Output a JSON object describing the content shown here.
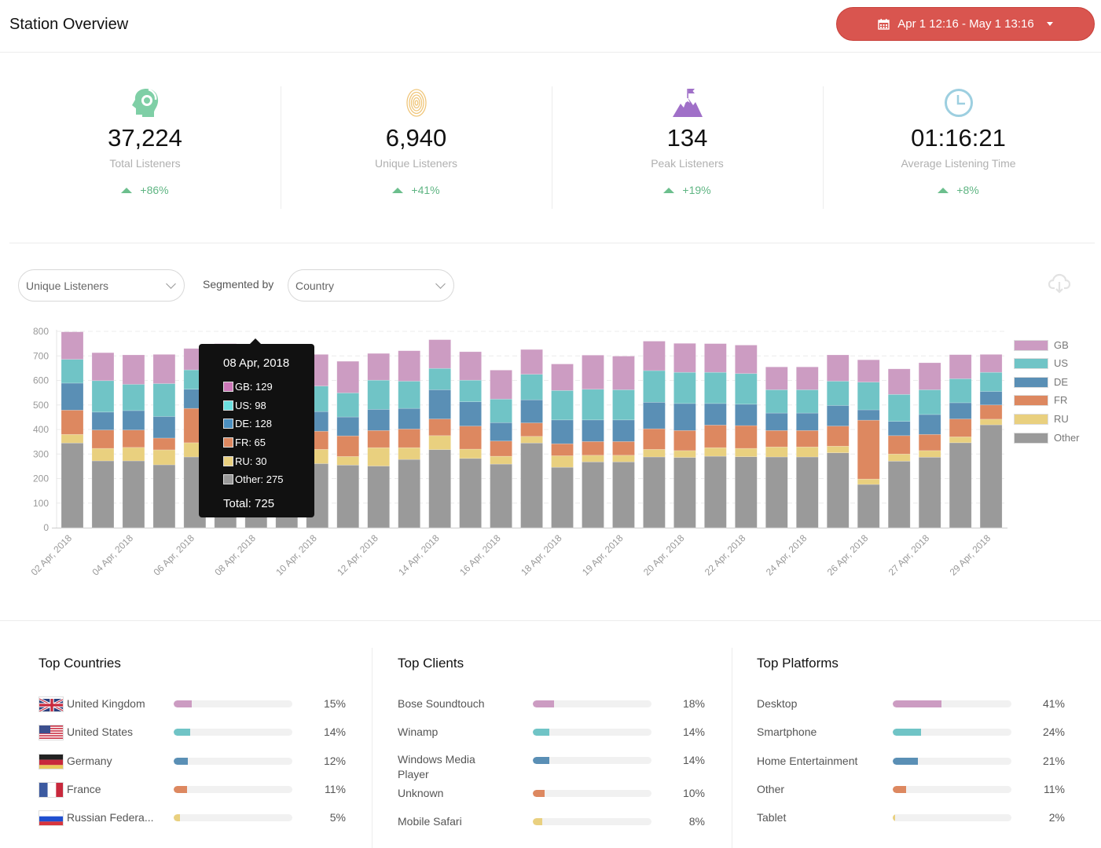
{
  "header": {
    "title": "Station Overview",
    "date_range": "Apr 1 12:16 - May 1 13:16",
    "date_icon": "calendar-icon"
  },
  "kpis": [
    {
      "icon": "listener-headphones-icon",
      "value": "37,224",
      "label": "Total Listeners",
      "change": "+86%",
      "color": "#7fcfa6"
    },
    {
      "icon": "fingerprint-icon",
      "value": "6,940",
      "label": "Unique Listeners",
      "change": "+41%",
      "color": "#f0c67a"
    },
    {
      "icon": "mountain-flag-icon",
      "value": "134",
      "label": "Peak Listeners",
      "change": "+19%",
      "color": "#a070c8"
    },
    {
      "icon": "clock-icon",
      "value": "01:16:21",
      "label": "Average Listening Time",
      "change": "+8%",
      "color": "#9dcfe0"
    }
  ],
  "controls": {
    "metric": "Unique Listeners",
    "segmented_by_label": "Segmented by",
    "segment": "Country",
    "download_icon": "cloud-download-icon"
  },
  "chart_data": {
    "type": "bar",
    "stacked": true,
    "ylim": [
      0,
      800
    ],
    "yticks": [
      0,
      100,
      200,
      300,
      400,
      500,
      600,
      700,
      800
    ],
    "x_tick_labels": [
      "02 Apr, 2018",
      "04 Apr, 2018",
      "06 Apr, 2018",
      "08 Apr, 2018",
      "10 Apr, 2018",
      "12 Apr, 2018",
      "14 Apr, 2018",
      "16 Apr, 2018",
      "18 Apr, 2018",
      "19 Apr, 2018",
      "20 Apr, 2018",
      "22 Apr, 2018",
      "24 Apr, 2018",
      "26 Apr, 2018",
      "27 Apr, 2018",
      "29 Apr, 2018"
    ],
    "legend_position": "right",
    "series": [
      {
        "name": "Other",
        "color": "#9a9a9a",
        "values": [
          345,
          272,
          272,
          256,
          288,
          300,
          275,
          280,
          261,
          255,
          251,
          278,
          318,
          282,
          259,
          345,
          246,
          268,
          268,
          288,
          286,
          291,
          289,
          288,
          288,
          305,
          176,
          271,
          287,
          346,
          419
        ]
      },
      {
        "name": "RU",
        "color": "#e9d07f",
        "values": [
          35,
          51,
          55,
          61,
          58,
          50,
          30,
          45,
          58,
          35,
          75,
          48,
          57,
          38,
          32,
          27,
          47,
          27,
          27,
          31,
          28,
          35,
          34,
          41,
          41,
          27,
          22,
          29,
          27,
          24,
          23
        ]
      },
      {
        "name": "FR",
        "color": "#dd8860",
        "values": [
          99,
          75,
          71,
          48,
          140,
          70,
          65,
          70,
          74,
          84,
          70,
          76,
          68,
          94,
          62,
          55,
          49,
          56,
          56,
          84,
          82,
          92,
          93,
          67,
          67,
          82,
          240,
          75,
          66,
          73,
          58
        ]
      },
      {
        "name": "DE",
        "color": "#5a8fb5",
        "values": [
          110,
          73,
          79,
          88,
          78,
          85,
          128,
          84,
          80,
          77,
          86,
          84,
          119,
          99,
          75,
          94,
          97,
          88,
          88,
          108,
          110,
          88,
          87,
          71,
          71,
          84,
          42,
          58,
          81,
          66,
          55
        ]
      },
      {
        "name": "US",
        "color": "#70c4c6",
        "values": [
          97,
          128,
          107,
          134,
          79,
          108,
          98,
          104,
          104,
          98,
          119,
          111,
          87,
          88,
          96,
          104,
          120,
          125,
          123,
          129,
          127,
          127,
          125,
          95,
          95,
          99,
          113,
          110,
          101,
          98,
          78
        ]
      },
      {
        "name": "GB",
        "color": "#cc9cc2",
        "values": [
          112,
          114,
          120,
          119,
          87,
          137,
          129,
          108,
          129,
          129,
          109,
          124,
          117,
          116,
          118,
          101,
          108,
          139,
          137,
          120,
          118,
          117,
          116,
          93,
          93,
          107,
          91,
          104,
          110,
          98,
          73
        ]
      }
    ],
    "legend": [
      "GB",
      "US",
      "DE",
      "FR",
      "RU",
      "Other"
    ],
    "highlight_index": 6,
    "highlight_colors": {
      "GB": "#cc77b8",
      "US": "#6bdfdf",
      "DE": "#4b8fc0",
      "FR": "#dd8860",
      "RU": "#e9d07f",
      "Other": "#9a9a9a"
    },
    "tooltip": {
      "date": "08 Apr, 2018",
      "rows": [
        {
          "name": "GB",
          "text": "GB: 129"
        },
        {
          "name": "US",
          "text": "US: 98"
        },
        {
          "name": "DE",
          "text": "DE: 128"
        },
        {
          "name": "FR",
          "text": "FR: 65"
        },
        {
          "name": "RU",
          "text": "RU: 30"
        },
        {
          "name": "Other",
          "text": "Other: 275"
        }
      ],
      "total": "Total: 725"
    }
  },
  "panels": [
    {
      "title": "Top Countries",
      "rows": [
        {
          "label": "United Kingdom",
          "pct": "15%",
          "value": 15,
          "color": "#cc9cc2",
          "flag": "uk-flag-icon"
        },
        {
          "label": "United States",
          "pct": "14%",
          "value": 14,
          "color": "#70c4c6",
          "flag": "us-flag-icon"
        },
        {
          "label": "Germany",
          "pct": "12%",
          "value": 12,
          "color": "#5a8fb5",
          "flag": "de-flag-icon"
        },
        {
          "label": "France",
          "pct": "11%",
          "value": 11,
          "color": "#dd8860",
          "flag": "fr-flag-icon"
        },
        {
          "label": "Russian Federa...",
          "pct": "5%",
          "value": 5,
          "color": "#e9d07f",
          "flag": "ru-flag-icon"
        }
      ]
    },
    {
      "title": "Top Clients",
      "rows": [
        {
          "label": "Bose Soundtouch",
          "pct": "18%",
          "value": 18,
          "color": "#cc9cc2"
        },
        {
          "label": "Winamp",
          "pct": "14%",
          "value": 14,
          "color": "#70c4c6"
        },
        {
          "label": "Windows Media Player",
          "pct": "14%",
          "value": 14,
          "color": "#5a8fb5"
        },
        {
          "label": "Unknown",
          "pct": "10%",
          "value": 10,
          "color": "#dd8860"
        },
        {
          "label": "Mobile Safari",
          "pct": "8%",
          "value": 8,
          "color": "#e9d07f"
        }
      ]
    },
    {
      "title": "Top Platforms",
      "rows": [
        {
          "label": "Desktop",
          "pct": "41%",
          "value": 41,
          "color": "#cc9cc2"
        },
        {
          "label": "Smartphone",
          "pct": "24%",
          "value": 24,
          "color": "#70c4c6"
        },
        {
          "label": "Home Entertainment",
          "pct": "21%",
          "value": 21,
          "color": "#5a8fb5"
        },
        {
          "label": "Other",
          "pct": "11%",
          "value": 11,
          "color": "#dd8860"
        },
        {
          "label": "Tablet",
          "pct": "2%",
          "value": 2,
          "color": "#e9d07f"
        }
      ]
    }
  ]
}
